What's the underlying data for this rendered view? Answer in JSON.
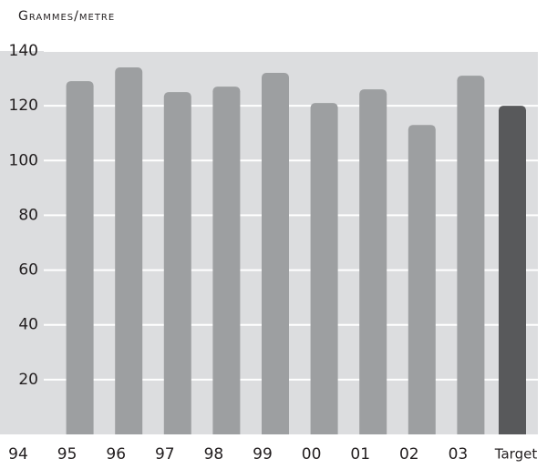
{
  "chart_data": {
    "type": "bar",
    "y_axis_label": "Grammes/metre",
    "categories": [
      "94",
      "95",
      "96",
      "97",
      "98",
      "99",
      "00",
      "01",
      "02",
      "03",
      "Target"
    ],
    "values": [
      null,
      129,
      134,
      125,
      127,
      132,
      121,
      126,
      113,
      131,
      120
    ],
    "colors": [
      null,
      "#9d9fa1",
      "#9d9fa1",
      "#9d9fa1",
      "#9d9fa1",
      "#9d9fa1",
      "#9d9fa1",
      "#9d9fa1",
      "#9d9fa1",
      "#9d9fa1",
      "#58595b"
    ],
    "background": "#dcdddf",
    "ylim": [
      0,
      140
    ],
    "yticks": [
      20,
      40,
      60,
      80,
      100,
      120,
      140
    ],
    "grid": true
  }
}
